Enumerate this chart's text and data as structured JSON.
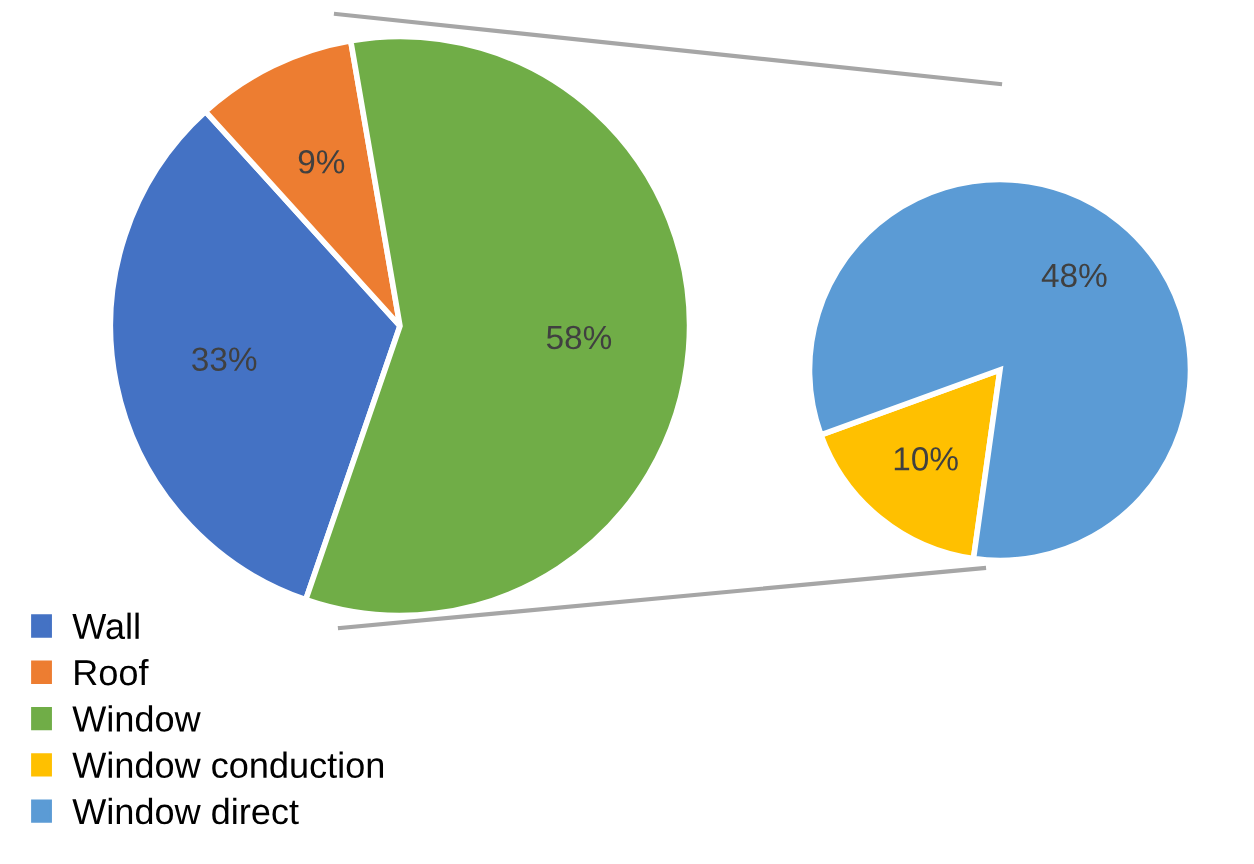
{
  "chart_data": [
    {
      "type": "pie",
      "categories": [
        "Wall",
        "Roof",
        "Window"
      ],
      "values": [
        33,
        9,
        58
      ],
      "colors": [
        "#4472c4",
        "#ed7d31",
        "#70ad47"
      ],
      "value_labels": [
        "33%",
        "9%",
        "58%"
      ],
      "legend": "bottom left"
    },
    {
      "type": "pie",
      "categories": [
        "Window conduction",
        "Window direct"
      ],
      "values": [
        10,
        48
      ],
      "colors": [
        "#ffc000",
        "#5b9bd5"
      ],
      "value_labels": [
        "10%",
        "48%"
      ],
      "legend": "bottom left"
    }
  ]
}
